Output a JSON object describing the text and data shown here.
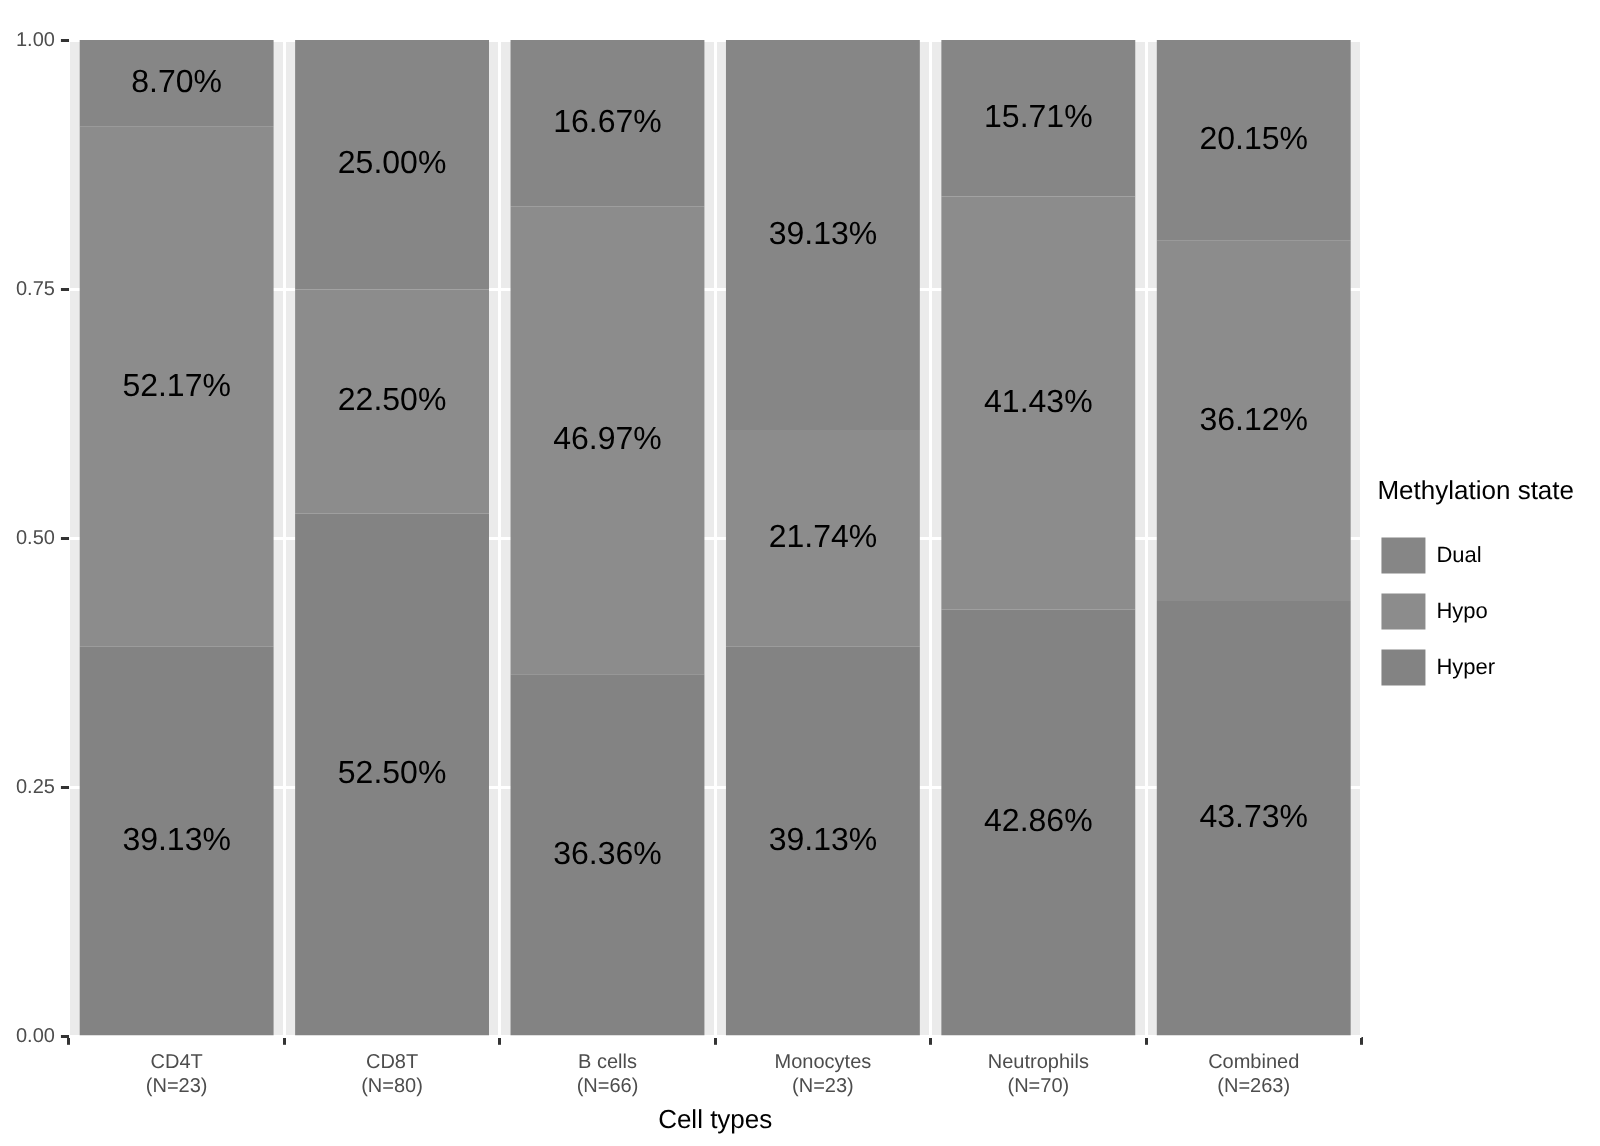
{
  "chart_data": {
    "type": "bar",
    "stacked": true,
    "xlabel": "Cell types",
    "legend_title": "Methylation state",
    "legend": "right",
    "grid": true,
    "categories": [
      "CD4T\n(N=23)",
      "CD8T\n(N=80)",
      "B cells\n(N=66)",
      "Monocytes\n(N=23)",
      "Neutrophils\n(N=70)",
      "Combined\n(N=263)"
    ],
    "ylim": [
      0,
      1
    ],
    "yticks": [
      {
        "value": 0,
        "label": "0.00"
      },
      {
        "value": 0.25,
        "label": "0.25"
      },
      {
        "value": 0.5,
        "label": "0.50"
      },
      {
        "value": 0.75,
        "label": "0.75"
      },
      {
        "value": 1,
        "label": "1.00"
      }
    ],
    "series": [
      {
        "name": "Hyper",
        "color": "#838383",
        "values": [
          0.3913,
          0.525,
          0.3636,
          0.3913,
          0.4286,
          0.4373
        ],
        "value_labels": [
          "39.13%",
          "52.50%",
          "36.36%",
          "39.13%",
          "42.86%",
          "43.73%"
        ]
      },
      {
        "name": "Hypo",
        "color": "#8c8c8c",
        "values": [
          0.5217,
          0.225,
          0.4697,
          0.2174,
          0.4143,
          0.3612
        ],
        "value_labels": [
          "52.17%",
          "22.50%",
          "46.97%",
          "21.74%",
          "41.43%",
          "36.12%"
        ]
      },
      {
        "name": "Dual",
        "color": "#868686",
        "values": [
          0.087,
          0.25,
          0.1667,
          0.3913,
          0.1571,
          0.2015
        ],
        "value_labels": [
          "8.70%",
          "25.00%",
          "16.67%",
          "39.13%",
          "15.71%",
          "20.15%"
        ]
      }
    ]
  }
}
